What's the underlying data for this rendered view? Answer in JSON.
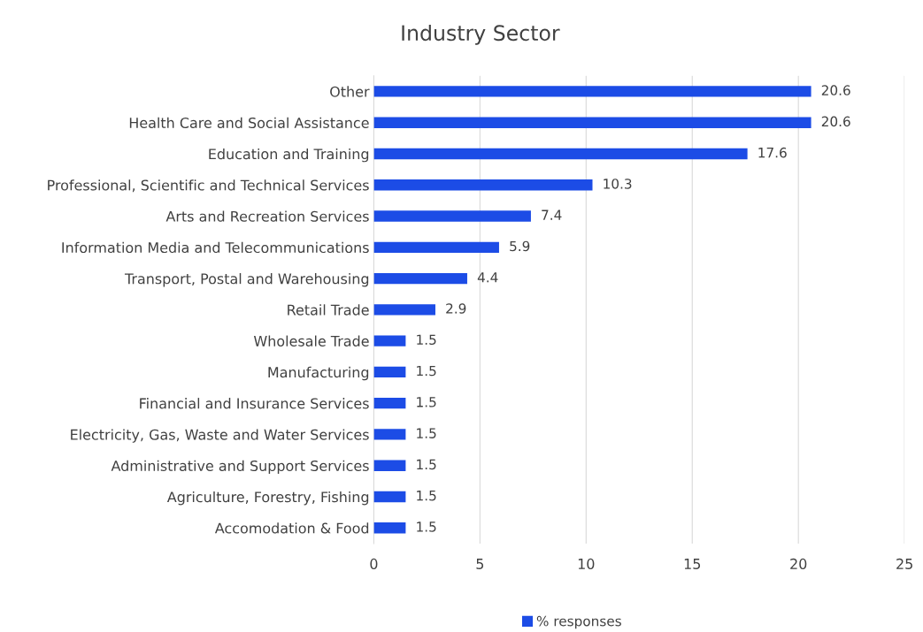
{
  "chart_data": {
    "type": "bar",
    "title": "Industry Sector",
    "orientation": "horizontal",
    "categories": [
      "Other",
      "Health Care and Social Assistance",
      "Education and Training",
      "Professional, Scientific and Technical Services",
      "Arts and Recreation Services",
      "Information Media and Telecommunications",
      "Transport, Postal and Warehousing",
      "Retail Trade",
      "Wholesale Trade",
      "Manufacturing",
      "Financial and Insurance Services",
      "Electricity, Gas, Waste and Water Services",
      "Administrative and Support Services",
      "Agriculture, Forestry, Fishing",
      "Accomodation & Food"
    ],
    "series": [
      {
        "name": "% responses",
        "color": "#1c4ce6",
        "values": [
          20.6,
          20.6,
          17.6,
          10.3,
          7.4,
          5.9,
          4.4,
          2.9,
          1.5,
          1.5,
          1.5,
          1.5,
          1.5,
          1.5,
          1.5
        ]
      }
    ],
    "xlim": [
      0,
      25
    ],
    "xticks": [
      0,
      5,
      10,
      15,
      20,
      25
    ],
    "grid": "x",
    "legend": "bottom",
    "data_labels": true
  }
}
